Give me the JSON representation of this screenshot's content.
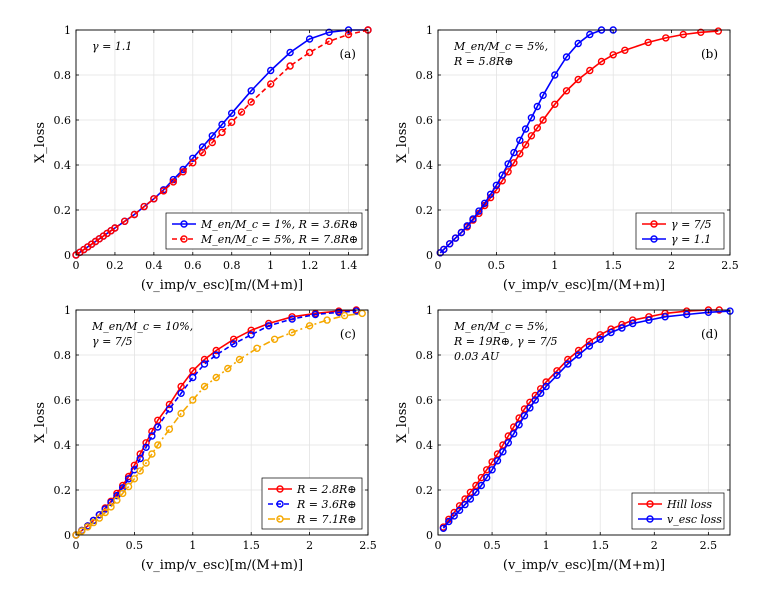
{
  "figure": {
    "xlabel": "(v_imp/v_esc)[m/(M+m)]",
    "ylabel": "X_loss"
  },
  "chart_data": [
    {
      "type": "line",
      "panel": "(a)",
      "annotation": [
        "γ = 1.1"
      ],
      "xlim": [
        0,
        1.5
      ],
      "ylim": [
        0,
        1
      ],
      "xticks": [
        0,
        0.2,
        0.4,
        0.6,
        0.8,
        1,
        1.2,
        1.4
      ],
      "yticks": [
        0,
        0.2,
        0.4,
        0.6,
        0.8,
        1
      ],
      "legend_position": "bottom-right",
      "series": [
        {
          "name": "M_en/M_c = 1%, R = 3.6R⊕",
          "color": "#0000ff",
          "dash": "solid",
          "x": [
            0,
            0.02,
            0.04,
            0.06,
            0.08,
            0.1,
            0.12,
            0.14,
            0.16,
            0.18,
            0.2,
            0.25,
            0.3,
            0.35,
            0.4,
            0.45,
            0.5,
            0.55,
            0.6,
            0.65,
            0.7,
            0.75,
            0.8,
            0.9,
            1.0,
            1.1,
            1.2,
            1.3,
            1.4,
            1.5
          ],
          "y": [
            0,
            0.012,
            0.024,
            0.036,
            0.048,
            0.06,
            0.072,
            0.084,
            0.096,
            0.108,
            0.12,
            0.15,
            0.18,
            0.215,
            0.25,
            0.29,
            0.335,
            0.38,
            0.43,
            0.48,
            0.53,
            0.58,
            0.63,
            0.73,
            0.82,
            0.9,
            0.96,
            0.99,
            1.0,
            1.0
          ]
        },
        {
          "name": "M_en/M_c = 5%, R = 7.8R⊕",
          "color": "#ff0000",
          "dash": "dashed",
          "x": [
            0,
            0.02,
            0.04,
            0.06,
            0.08,
            0.1,
            0.12,
            0.14,
            0.16,
            0.18,
            0.2,
            0.25,
            0.3,
            0.35,
            0.4,
            0.45,
            0.5,
            0.55,
            0.6,
            0.65,
            0.7,
            0.75,
            0.8,
            0.85,
            0.9,
            1.0,
            1.1,
            1.2,
            1.3,
            1.4,
            1.5
          ],
          "y": [
            0,
            0.012,
            0.024,
            0.036,
            0.048,
            0.06,
            0.072,
            0.084,
            0.096,
            0.108,
            0.12,
            0.15,
            0.18,
            0.215,
            0.25,
            0.285,
            0.325,
            0.37,
            0.41,
            0.455,
            0.5,
            0.545,
            0.59,
            0.635,
            0.68,
            0.76,
            0.84,
            0.9,
            0.95,
            0.98,
            1.0
          ]
        }
      ]
    },
    {
      "type": "line",
      "panel": "(b)",
      "annotation": [
        "M_en/M_c = 5%,",
        "R = 5.8R⊕"
      ],
      "xlim": [
        0,
        2.5
      ],
      "ylim": [
        0,
        1
      ],
      "xticks": [
        0,
        0.5,
        1,
        1.5,
        2,
        2.5
      ],
      "yticks": [
        0,
        0.2,
        0.4,
        0.6,
        0.8,
        1
      ],
      "legend_position": "bottom-right",
      "series": [
        {
          "name": "γ = 7/5",
          "color": "#ff0000",
          "dash": "solid",
          "x": [
            0.02,
            0.05,
            0.1,
            0.15,
            0.2,
            0.25,
            0.3,
            0.35,
            0.4,
            0.45,
            0.5,
            0.55,
            0.6,
            0.65,
            0.7,
            0.75,
            0.8,
            0.85,
            0.9,
            1.0,
            1.1,
            1.2,
            1.3,
            1.4,
            1.5,
            1.6,
            1.8,
            1.95,
            2.1,
            2.25,
            2.4
          ],
          "y": [
            0.01,
            0.025,
            0.05,
            0.075,
            0.1,
            0.125,
            0.155,
            0.185,
            0.22,
            0.255,
            0.29,
            0.33,
            0.37,
            0.41,
            0.45,
            0.49,
            0.53,
            0.565,
            0.6,
            0.67,
            0.73,
            0.78,
            0.82,
            0.86,
            0.89,
            0.91,
            0.945,
            0.965,
            0.98,
            0.99,
            0.995
          ]
        },
        {
          "name": "γ = 1.1",
          "color": "#0000ff",
          "dash": "solid",
          "x": [
            0.02,
            0.05,
            0.1,
            0.15,
            0.2,
            0.25,
            0.3,
            0.35,
            0.4,
            0.45,
            0.5,
            0.55,
            0.6,
            0.65,
            0.7,
            0.75,
            0.8,
            0.85,
            0.9,
            1.0,
            1.1,
            1.2,
            1.3,
            1.4,
            1.5
          ],
          "y": [
            0.01,
            0.025,
            0.05,
            0.075,
            0.1,
            0.13,
            0.16,
            0.195,
            0.23,
            0.27,
            0.31,
            0.355,
            0.405,
            0.455,
            0.51,
            0.56,
            0.61,
            0.66,
            0.71,
            0.8,
            0.88,
            0.94,
            0.98,
            1.0,
            1.0
          ]
        }
      ]
    },
    {
      "type": "line",
      "panel": "(c)",
      "annotation": [
        "M_en/M_c = 10%,",
        "γ = 7/5"
      ],
      "xlim": [
        0,
        2.5
      ],
      "ylim": [
        0,
        1
      ],
      "xticks": [
        0,
        0.5,
        1,
        1.5,
        2,
        2.5
      ],
      "yticks": [
        0,
        0.2,
        0.4,
        0.6,
        0.8,
        1
      ],
      "legend_position": "bottom-right",
      "series": [
        {
          "name": "R = 2.8R⊕",
          "color": "#ff0000",
          "dash": "solid",
          "x": [
            0,
            0.05,
            0.1,
            0.15,
            0.2,
            0.25,
            0.3,
            0.35,
            0.4,
            0.45,
            0.5,
            0.55,
            0.6,
            0.65,
            0.7,
            0.8,
            0.9,
            1.0,
            1.1,
            1.2,
            1.35,
            1.5,
            1.65,
            1.85,
            2.05,
            2.25,
            2.4
          ],
          "y": [
            0,
            0.02,
            0.04,
            0.065,
            0.09,
            0.12,
            0.15,
            0.185,
            0.22,
            0.26,
            0.31,
            0.36,
            0.41,
            0.46,
            0.51,
            0.58,
            0.66,
            0.73,
            0.78,
            0.82,
            0.87,
            0.91,
            0.94,
            0.97,
            0.985,
            0.995,
            1.0
          ]
        },
        {
          "name": "R = 3.6R⊕",
          "color": "#0000ff",
          "dash": "dashed",
          "x": [
            0,
            0.05,
            0.1,
            0.15,
            0.2,
            0.25,
            0.3,
            0.35,
            0.4,
            0.45,
            0.5,
            0.55,
            0.6,
            0.65,
            0.7,
            0.8,
            0.9,
            1.0,
            1.1,
            1.2,
            1.35,
            1.5,
            1.65,
            1.85,
            2.05,
            2.25,
            2.4
          ],
          "y": [
            0,
            0.02,
            0.04,
            0.065,
            0.09,
            0.115,
            0.145,
            0.175,
            0.21,
            0.25,
            0.29,
            0.34,
            0.39,
            0.44,
            0.48,
            0.56,
            0.63,
            0.7,
            0.76,
            0.8,
            0.85,
            0.89,
            0.93,
            0.96,
            0.98,
            0.99,
            0.995
          ]
        },
        {
          "name": "R = 7.1R⊕",
          "color": "#f5a800",
          "dash": "dashdot",
          "x": [
            0,
            0.05,
            0.1,
            0.15,
            0.2,
            0.25,
            0.3,
            0.35,
            0.4,
            0.45,
            0.5,
            0.55,
            0.6,
            0.65,
            0.7,
            0.8,
            0.9,
            1.0,
            1.1,
            1.2,
            1.3,
            1.4,
            1.55,
            1.7,
            1.85,
            2.0,
            2.15,
            2.3,
            2.45
          ],
          "y": [
            0,
            0.018,
            0.036,
            0.055,
            0.075,
            0.1,
            0.125,
            0.155,
            0.185,
            0.215,
            0.25,
            0.285,
            0.32,
            0.36,
            0.4,
            0.47,
            0.54,
            0.6,
            0.66,
            0.7,
            0.74,
            0.78,
            0.83,
            0.87,
            0.9,
            0.93,
            0.955,
            0.975,
            0.985
          ]
        }
      ]
    },
    {
      "type": "line",
      "panel": "(d)",
      "annotation": [
        "M_en/M_c = 5%,",
        "R = 19R⊕, γ = 7/5",
        "0.03 AU"
      ],
      "xlim": [
        0,
        2.7
      ],
      "ylim": [
        0,
        1
      ],
      "xticks": [
        0,
        0.5,
        1,
        1.5,
        2,
        2.5
      ],
      "yticks": [
        0,
        0.2,
        0.4,
        0.6,
        0.8,
        1
      ],
      "legend_position": "bottom-right",
      "series": [
        {
          "name": "Hill loss",
          "color": "#ff0000",
          "dash": "solid",
          "x": [
            0.05,
            0.1,
            0.15,
            0.2,
            0.25,
            0.3,
            0.35,
            0.4,
            0.45,
            0.5,
            0.55,
            0.6,
            0.65,
            0.7,
            0.75,
            0.8,
            0.85,
            0.9,
            0.95,
            1.0,
            1.1,
            1.2,
            1.3,
            1.4,
            1.5,
            1.6,
            1.7,
            1.8,
            1.95,
            2.1,
            2.3,
            2.5,
            2.6
          ],
          "y": [
            0.035,
            0.07,
            0.1,
            0.13,
            0.16,
            0.19,
            0.22,
            0.255,
            0.29,
            0.325,
            0.36,
            0.4,
            0.44,
            0.48,
            0.52,
            0.56,
            0.59,
            0.62,
            0.65,
            0.68,
            0.73,
            0.78,
            0.82,
            0.86,
            0.89,
            0.915,
            0.935,
            0.955,
            0.97,
            0.985,
            0.995,
            1.0,
            1.0
          ]
        },
        {
          "name": "v_esc loss",
          "color": "#0000ff",
          "dash": "solid",
          "x": [
            0.05,
            0.1,
            0.15,
            0.2,
            0.25,
            0.3,
            0.35,
            0.4,
            0.45,
            0.5,
            0.55,
            0.6,
            0.65,
            0.7,
            0.75,
            0.8,
            0.85,
            0.9,
            0.95,
            1.0,
            1.1,
            1.2,
            1.3,
            1.4,
            1.5,
            1.6,
            1.7,
            1.8,
            1.95,
            2.1,
            2.3,
            2.5,
            2.7
          ],
          "y": [
            0.03,
            0.06,
            0.085,
            0.11,
            0.135,
            0.16,
            0.19,
            0.22,
            0.255,
            0.29,
            0.33,
            0.37,
            0.41,
            0.45,
            0.49,
            0.53,
            0.565,
            0.6,
            0.63,
            0.66,
            0.71,
            0.76,
            0.8,
            0.84,
            0.87,
            0.9,
            0.92,
            0.94,
            0.955,
            0.97,
            0.98,
            0.99,
            0.995
          ]
        }
      ]
    }
  ]
}
